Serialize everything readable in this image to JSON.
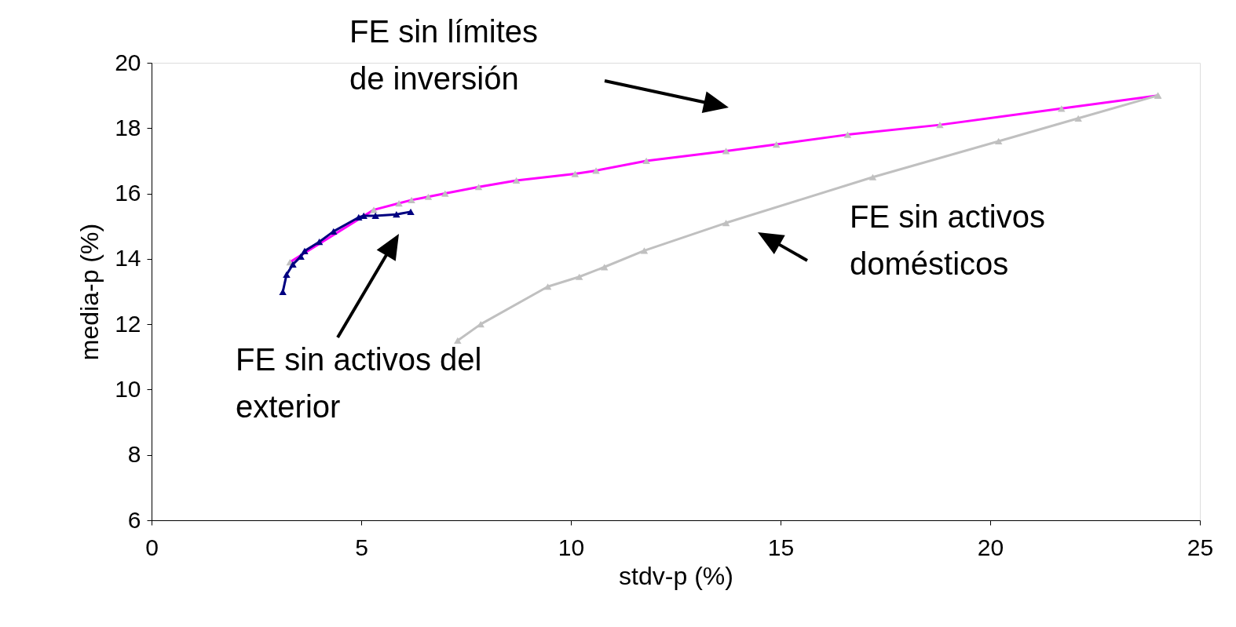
{
  "chart_data": {
    "type": "line",
    "xlabel": "stdv-p (%)",
    "ylabel": "media-p (%)",
    "xlim": [
      0,
      25
    ],
    "xticks": [
      0,
      5,
      10,
      15,
      20,
      25
    ],
    "ylim": [
      6,
      20
    ],
    "yticks": [
      6,
      8,
      10,
      12,
      14,
      16,
      18,
      20
    ],
    "marker": "triangle",
    "line_style": "solid",
    "annotations": [
      "FE sin límites de inversión",
      "FE sin activos domésticos",
      "FE sin activos del exterior"
    ],
    "series": [
      {
        "color": "#ff00ff",
        "colors": [
          "#c0c0c0",
          "#c0c0c0",
          "#c0c0c0",
          "#c0c0c0",
          "#c0c0c0",
          "#c0c0c0",
          "#c0c0c0",
          "#c0c0c0",
          "#c0c0c0",
          "#c0c0c0",
          "#c0c0c0",
          "#c0c0c0",
          "#c0c0c0",
          "#c0c0c0",
          "#c0c0c0",
          "#c0c0c0",
          "#c0c0c0"
        ],
        "x": [
          3.3,
          5.3,
          5.9,
          6.2,
          6.6,
          7.0,
          7.8,
          8.7,
          10.1,
          10.6,
          11.8,
          13.7,
          14.9,
          16.6,
          18.8,
          21.7,
          24.0
        ],
        "values": [
          13.9,
          15.5,
          15.7,
          15.8,
          15.9,
          16.0,
          16.2,
          16.4,
          16.6,
          16.7,
          17.0,
          17.3,
          17.5,
          17.8,
          18.1,
          18.6,
          19.0
        ]
      },
      {
        "color": "#c0c0c0",
        "x": [
          7.3,
          7.85,
          9.45,
          10.2,
          10.8,
          11.75,
          13.7,
          17.2,
          20.2,
          22.1,
          24.0
        ],
        "values": [
          11.5,
          12.0,
          13.15,
          13.45,
          13.75,
          14.25,
          15.1,
          16.5,
          17.6,
          18.3,
          19.0
        ]
      },
      {
        "color": "#000080",
        "x": [
          3.13,
          3.22,
          3.37,
          3.56,
          3.65,
          4.0,
          4.34,
          4.94,
          5.06,
          5.34,
          5.84,
          6.18
        ],
        "values": [
          12.99,
          13.52,
          13.83,
          14.07,
          14.24,
          14.52,
          14.84,
          15.27,
          15.32,
          15.32,
          15.36,
          15.44
        ]
      }
    ]
  }
}
